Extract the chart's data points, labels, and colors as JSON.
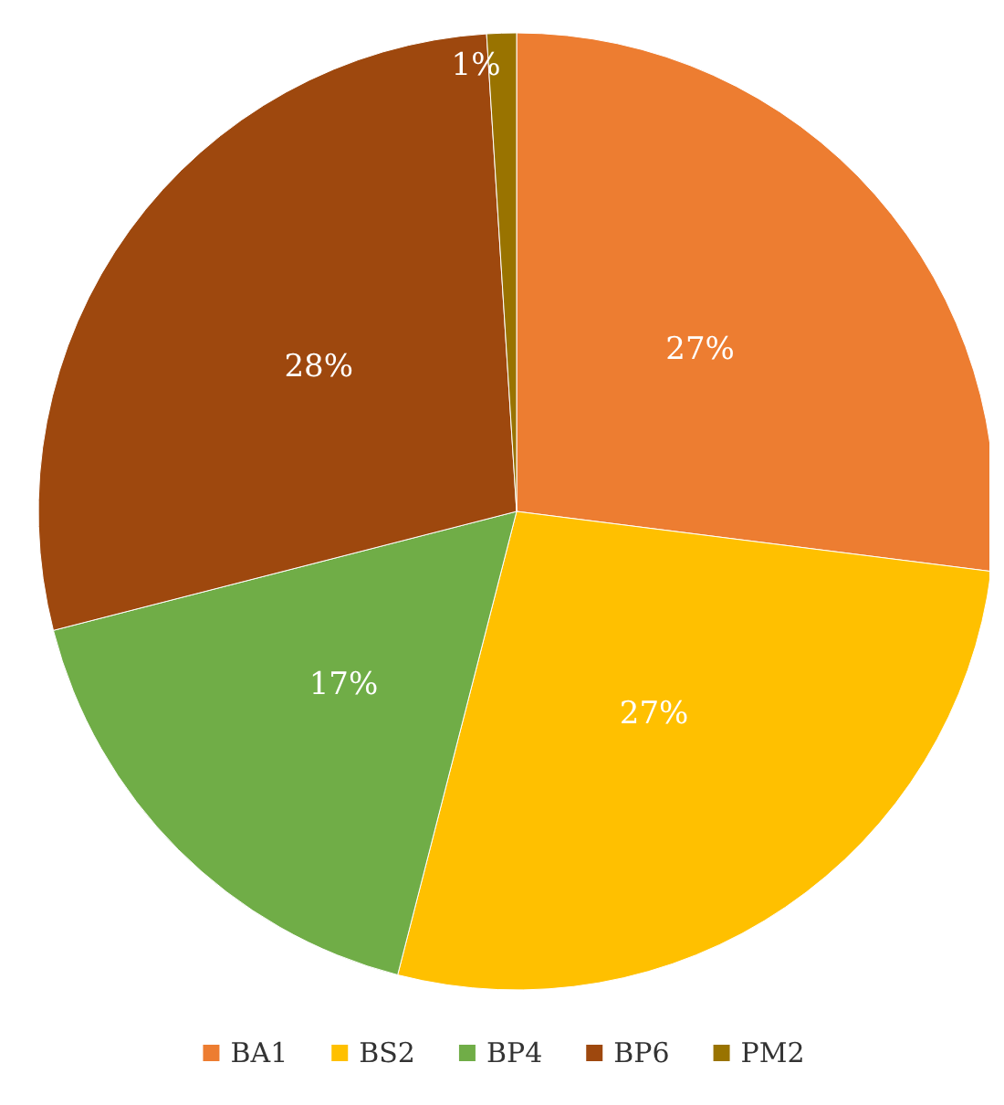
{
  "chart_data": {
    "type": "pie",
    "categories": [
      "BA1",
      "BS2",
      "BP4",
      "BP6",
      "PM2"
    ],
    "values": [
      27,
      27,
      17,
      28,
      1
    ],
    "colors": [
      "#ed7d31",
      "#ffc000",
      "#70ad47",
      "#9e480e",
      "#997300"
    ],
    "value_labels": [
      "27%",
      "27%",
      "17%",
      "28%",
      "1%"
    ],
    "legend": "bottom"
  }
}
